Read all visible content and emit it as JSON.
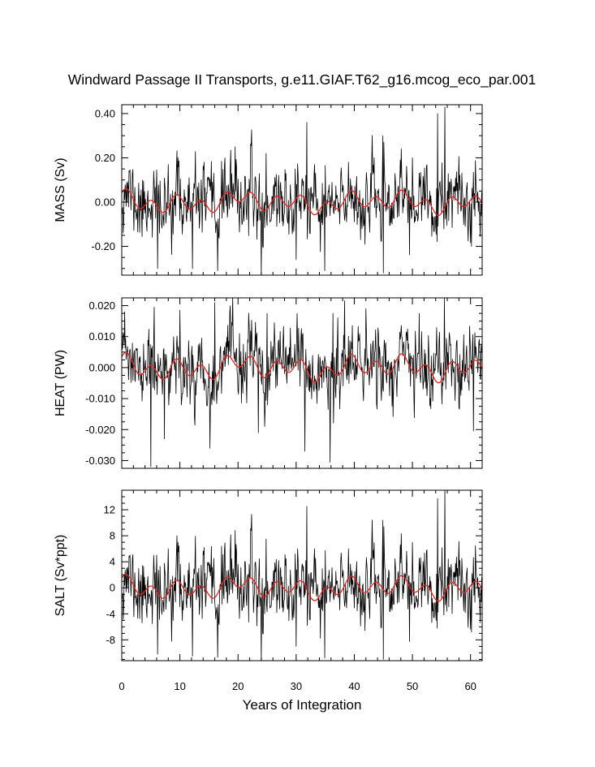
{
  "figure": {
    "title": "Windward Passage II Transports, g.e11.GIAF.T62_g16.mcog_eco_par.001",
    "xlabel": "Years of Integration"
  },
  "chart_data": [
    {
      "type": "line",
      "ylabel": "MASS (Sv)",
      "xlim": [
        0,
        62
      ],
      "ylim": [
        -0.33,
        0.44
      ],
      "yticks": [
        0.4,
        0.2,
        0.0,
        -0.2
      ],
      "ytick_labels": [
        "0.40",
        "0.20",
        "0.00",
        "-0.20"
      ],
      "ytick_minor_step": 0.05,
      "xticks": [
        0,
        10,
        20,
        30,
        40,
        50,
        60
      ],
      "xtick_labels": [
        "0",
        "10",
        "20",
        "30",
        "40",
        "50",
        "60"
      ],
      "series": [
        {
          "role": "monthly",
          "color": "#000000",
          "sigma": 0.075,
          "seed": 11,
          "spikes": [
            [
              5.5,
              0.14
            ],
            [
              6.2,
              -0.3
            ],
            [
              8.0,
              0.17
            ],
            [
              9.7,
              0.2
            ],
            [
              12.2,
              -0.3
            ],
            [
              14.2,
              0.18
            ],
            [
              16.5,
              -0.31
            ],
            [
              19.5,
              0.25
            ],
            [
              24.0,
              -0.33
            ],
            [
              24.8,
              0.22
            ],
            [
              30.0,
              -0.26
            ],
            [
              31.8,
              0.36
            ],
            [
              33.2,
              0.17
            ],
            [
              34.9,
              -0.31
            ],
            [
              39.0,
              0.18
            ],
            [
              45.0,
              -0.32
            ],
            [
              50.0,
              0.2
            ],
            [
              54.3,
              0.4
            ],
            [
              55.6,
              0.43
            ],
            [
              60.2,
              -0.2
            ]
          ]
        },
        {
          "role": "annual_mean",
          "color": "#e8231d",
          "scale": 0.055
        }
      ]
    },
    {
      "type": "line",
      "ylabel": "HEAT (PW)",
      "xlim": [
        0,
        62
      ],
      "ylim": [
        -0.0325,
        0.0225
      ],
      "yticks": [
        0.02,
        0.01,
        0.0,
        -0.01,
        -0.02,
        -0.03
      ],
      "ytick_labels": [
        "0.020",
        "0.010",
        "0.000",
        "-0.010",
        "-0.020",
        "-0.030"
      ],
      "ytick_minor_step": 0.0025,
      "xticks": [
        0,
        10,
        20,
        30,
        40,
        50,
        60
      ],
      "xtick_labels": [
        "0",
        "10",
        "20",
        "30",
        "40",
        "50",
        "60"
      ],
      "series": [
        {
          "role": "monthly",
          "color": "#000000",
          "sigma": 0.0055,
          "seed": 23,
          "spikes": [
            [
              5.0,
              -0.032
            ],
            [
              5.6,
              0.0195
            ],
            [
              7.3,
              -0.023
            ],
            [
              10.0,
              0.0185
            ],
            [
              15.2,
              -0.026
            ],
            [
              16.0,
              0.021
            ],
            [
              23.5,
              -0.021
            ],
            [
              25.0,
              0.0175
            ],
            [
              31.5,
              -0.027
            ],
            [
              35.8,
              -0.0305
            ],
            [
              36.3,
              0.0175
            ],
            [
              42.0,
              0.019
            ],
            [
              51.2,
              0.0175
            ],
            [
              55.5,
              0.0223
            ],
            [
              60.5,
              -0.0205
            ]
          ]
        },
        {
          "role": "annual_mean",
          "color": "#e8231d",
          "scale": 0.0045
        }
      ]
    },
    {
      "type": "line",
      "ylabel": "SALT (Sv*ppt)",
      "xlim": [
        0,
        62
      ],
      "ylim": [
        -11.2,
        15.0
      ],
      "yticks": [
        12,
        8,
        4,
        0,
        -4,
        -8
      ],
      "ytick_labels": [
        "12",
        "8",
        "4",
        "0",
        "-4",
        "-8"
      ],
      "ytick_minor_step": 1,
      "xticks": [
        0,
        10,
        20,
        30,
        40,
        50,
        60
      ],
      "xtick_labels": [
        "0",
        "10",
        "20",
        "30",
        "40",
        "50",
        "60"
      ],
      "series": [
        {
          "role": "monthly",
          "color": "#000000",
          "sigma": 2.6,
          "seed": 11,
          "spikes": [
            [
              5.5,
              5.0
            ],
            [
              6.2,
              -10.2
            ],
            [
              8.0,
              6.0
            ],
            [
              9.7,
              7.0
            ],
            [
              12.2,
              -10.5
            ],
            [
              14.2,
              6.2
            ],
            [
              16.5,
              -10.7
            ],
            [
              19.5,
              8.8
            ],
            [
              24.0,
              -11.2
            ],
            [
              24.8,
              7.5
            ],
            [
              30.0,
              -9.0
            ],
            [
              31.8,
              12.5
            ],
            [
              33.2,
              6.0
            ],
            [
              34.9,
              -10.8
            ],
            [
              39.0,
              6.0
            ],
            [
              45.0,
              -11.0
            ],
            [
              50.0,
              7.0
            ],
            [
              54.3,
              13.7
            ],
            [
              55.6,
              15.0
            ],
            [
              60.2,
              -6.8
            ]
          ]
        },
        {
          "role": "annual_mean",
          "color": "#e8231d",
          "scale": 1.9
        }
      ]
    }
  ]
}
